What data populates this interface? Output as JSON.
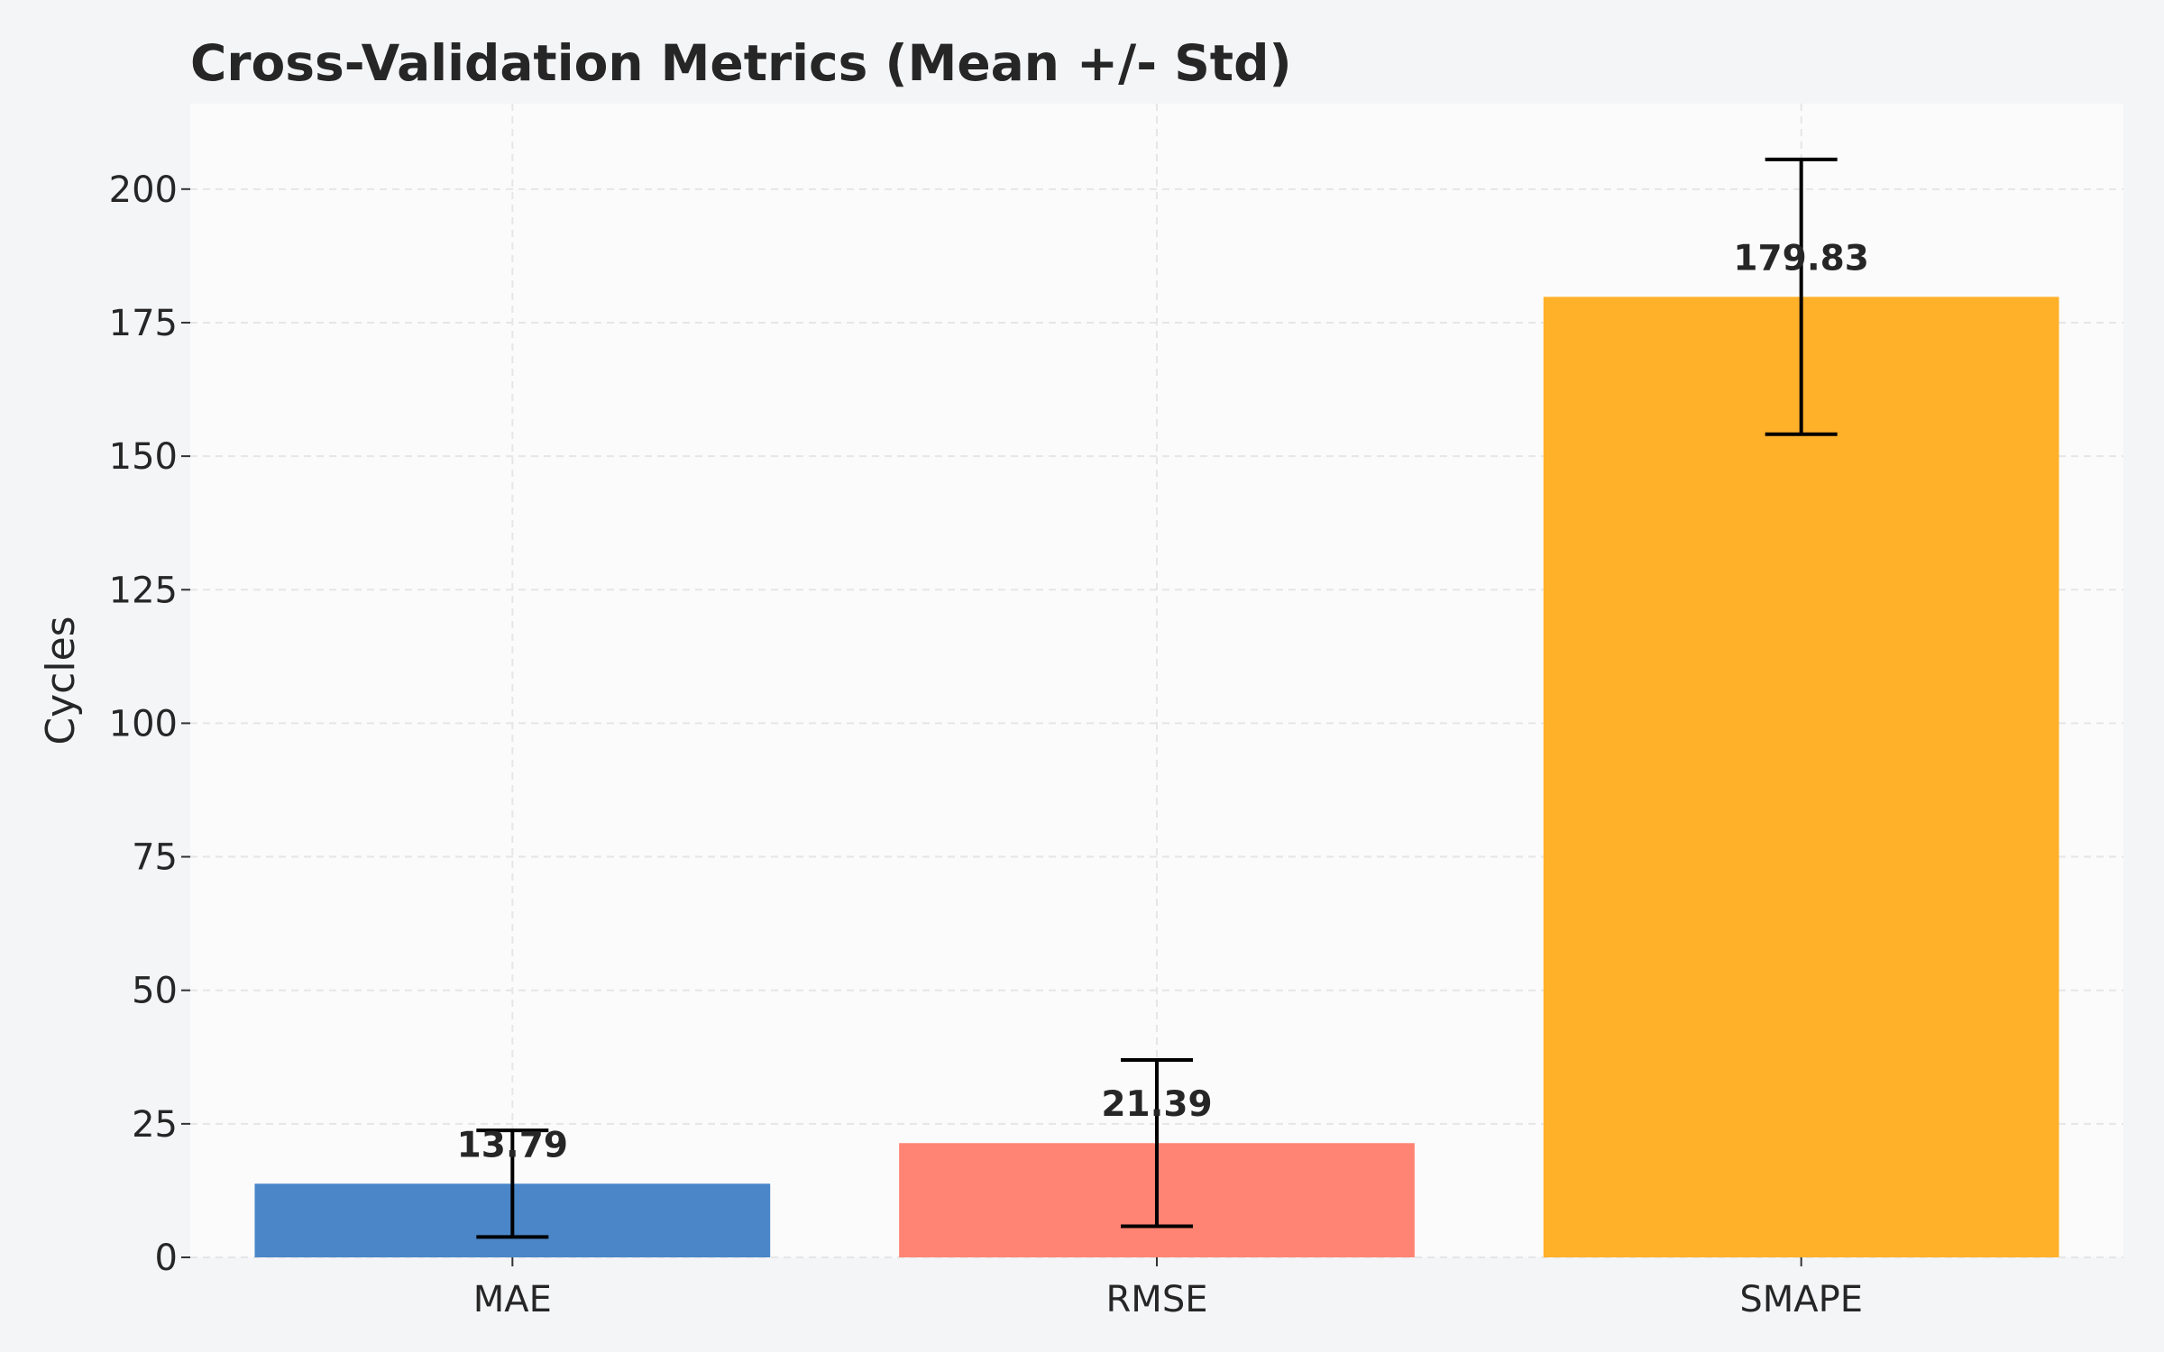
{
  "chart_data": {
    "type": "bar",
    "title": "Cross-Validation Metrics (Mean +/- Std)",
    "xlabel": "",
    "ylabel": "Cycles",
    "categories": [
      "MAE",
      "RMSE",
      "SMAPE"
    ],
    "values": [
      13.79,
      21.39,
      179.83
    ],
    "value_labels": [
      "13.79",
      "21.39",
      "179.83"
    ],
    "error_bars": [
      9.98,
      15.57,
      25.72
    ],
    "colors": [
      "#4a86c8",
      "#ff8473",
      "#ffb12a"
    ],
    "ylim": [
      0,
      216
    ],
    "yticks": [
      0,
      25,
      50,
      75,
      100,
      125,
      150,
      175,
      200
    ],
    "ytick_labels": [
      "0",
      "25",
      "50",
      "75",
      "100",
      "125",
      "150",
      "175",
      "200"
    ],
    "grid": true,
    "grid_style": "dashed",
    "plot_background": "#fbfbfb",
    "page_background": "#f4f5f7"
  }
}
